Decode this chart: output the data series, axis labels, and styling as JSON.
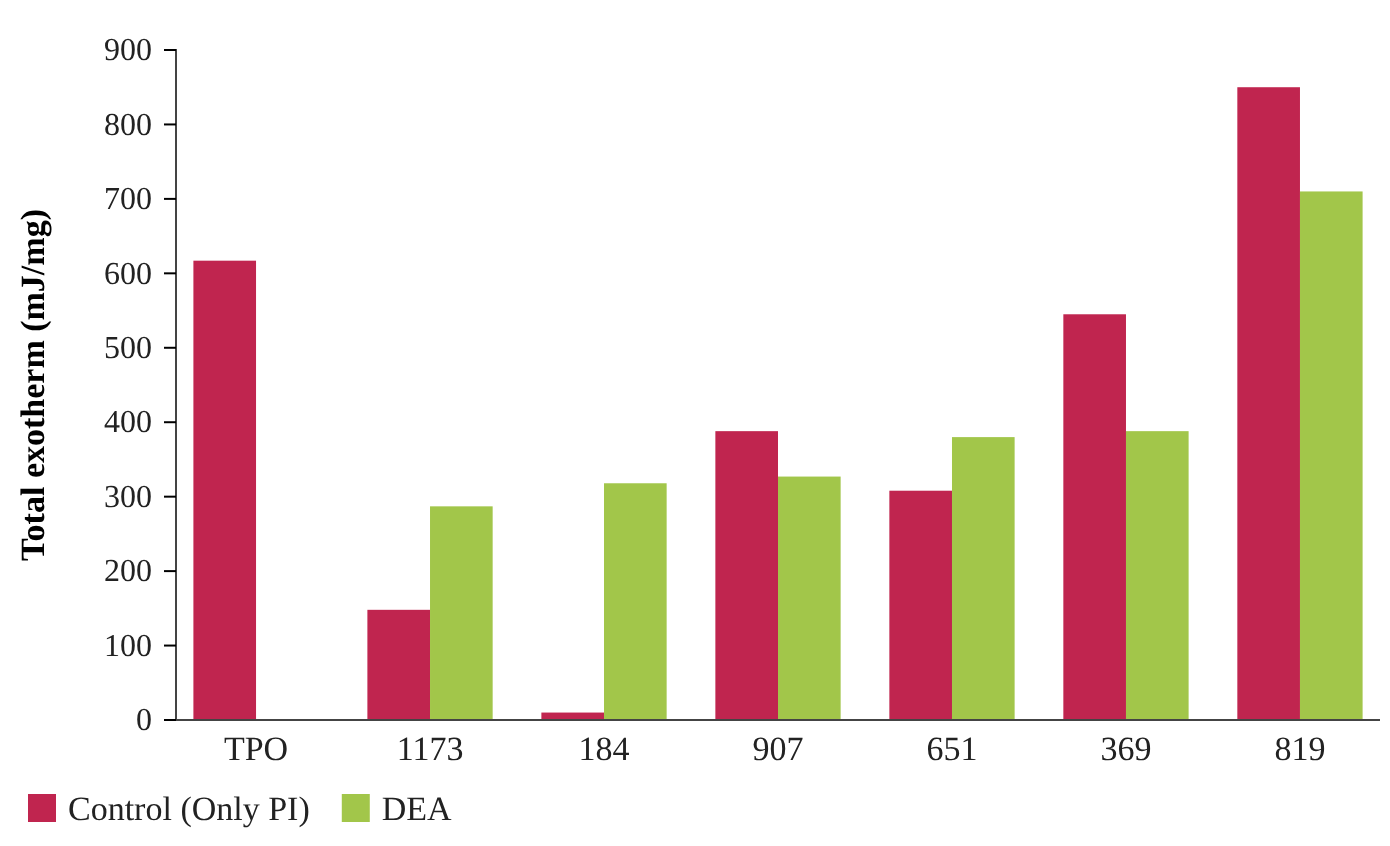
{
  "chart_data": {
    "type": "bar",
    "ylabel": "Total exotherm (mJ/mg)",
    "categories": [
      "TPO",
      "1173",
      "184",
      "907",
      "651",
      "369",
      "819"
    ],
    "series": [
      {
        "name": "Control (Only PI)",
        "color": "#c0254f",
        "values": [
          617,
          148,
          10,
          388,
          308,
          545,
          850
        ]
      },
      {
        "name": "DEA",
        "color": "#a2c64a",
        "values": [
          null,
          287,
          318,
          327,
          380,
          388,
          710
        ]
      }
    ],
    "ylim": [
      0,
      900
    ],
    "yticks": [
      0,
      100,
      200,
      300,
      400,
      500,
      600,
      700,
      800,
      900
    ],
    "grid": false,
    "legend": "bottom left"
  }
}
